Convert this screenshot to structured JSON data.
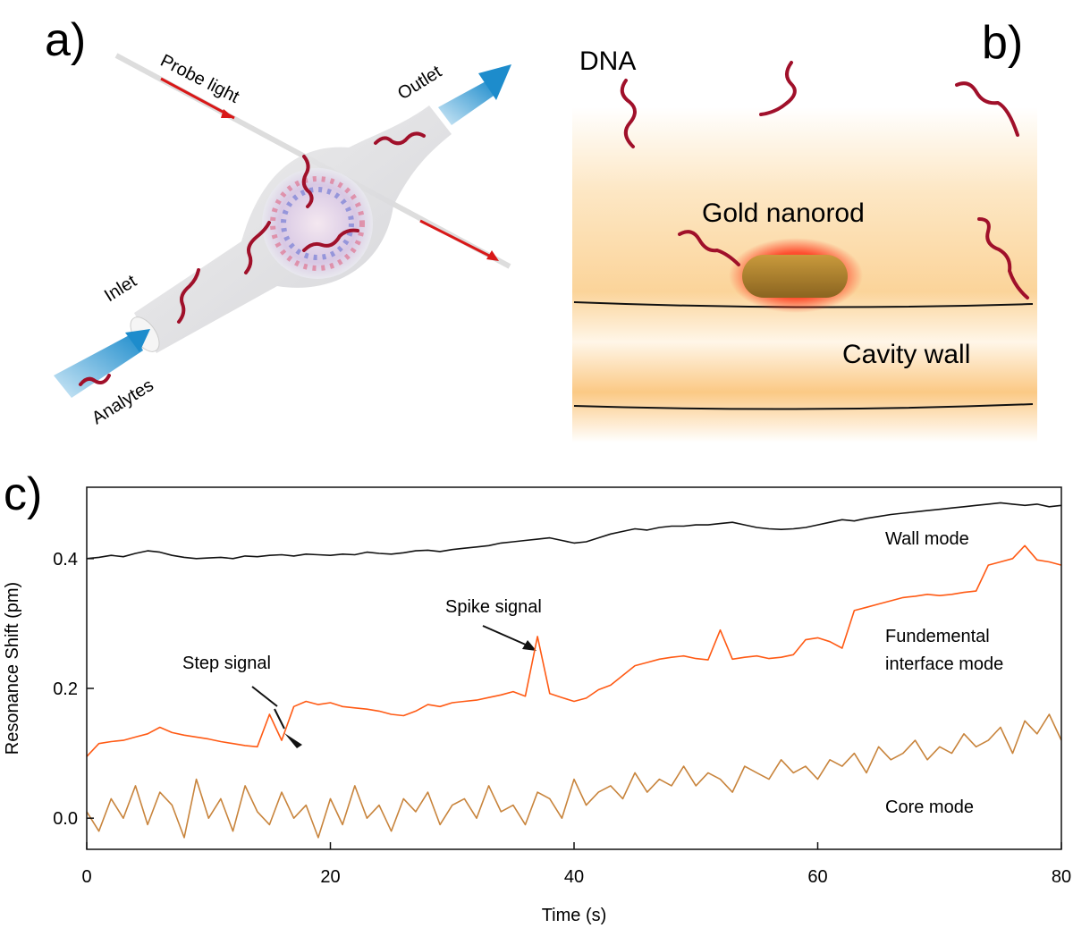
{
  "panel_a": {
    "label": "a)",
    "probe": "Probe light",
    "outlet": "Outlet",
    "inlet": "Inlet",
    "analytes": "Analytes"
  },
  "panel_b": {
    "label": "b)",
    "dna": "DNA",
    "nanorod": "Gold nanorod",
    "wall": "Cavity wall"
  },
  "panel_c": {
    "label": "c)"
  },
  "chart_data": {
    "type": "line",
    "xlabel": "Time (s)",
    "ylabel": "Resonance Shift (pm)",
    "x": [
      0,
      1,
      2,
      3,
      4,
      5,
      6,
      7,
      8,
      9,
      10,
      11,
      12,
      13,
      14,
      15,
      16,
      17,
      18,
      19,
      20,
      21,
      22,
      23,
      24,
      25,
      26,
      27,
      28,
      29,
      30,
      31,
      32,
      33,
      34,
      35,
      36,
      37,
      38,
      39,
      40,
      41,
      42,
      43,
      44,
      45,
      46,
      47,
      48,
      49,
      50,
      51,
      52,
      53,
      54,
      55,
      56,
      57,
      58,
      59,
      60,
      61,
      62,
      63,
      64,
      65,
      66,
      67,
      68,
      69,
      70,
      71,
      72,
      73,
      74,
      75,
      76,
      77,
      78,
      79,
      80
    ],
    "series": [
      {
        "name": "Wall mode",
        "color": "#111111",
        "values": [
          0.4,
          0.402,
          0.405,
          0.403,
          0.408,
          0.412,
          0.41,
          0.405,
          0.402,
          0.4,
          0.401,
          0.402,
          0.4,
          0.404,
          0.403,
          0.405,
          0.406,
          0.404,
          0.407,
          0.406,
          0.405,
          0.407,
          0.406,
          0.41,
          0.408,
          0.407,
          0.409,
          0.412,
          0.413,
          0.411,
          0.414,
          0.416,
          0.418,
          0.42,
          0.424,
          0.426,
          0.428,
          0.43,
          0.432,
          0.428,
          0.424,
          0.426,
          0.432,
          0.438,
          0.442,
          0.446,
          0.444,
          0.448,
          0.45,
          0.45,
          0.452,
          0.452,
          0.454,
          0.456,
          0.452,
          0.448,
          0.446,
          0.445,
          0.446,
          0.448,
          0.452,
          0.456,
          0.46,
          0.458,
          0.462,
          0.465,
          0.468,
          0.47,
          0.472,
          0.474,
          0.476,
          0.478,
          0.48,
          0.482,
          0.484,
          0.486,
          0.484,
          0.482,
          0.484,
          0.48,
          0.482
        ]
      },
      {
        "name": "Fundemental interface mode",
        "color": "#ff5a14",
        "values": [
          0.095,
          0.115,
          0.118,
          0.12,
          0.125,
          0.13,
          0.14,
          0.132,
          0.128,
          0.125,
          0.122,
          0.118,
          0.115,
          0.112,
          0.11,
          0.16,
          0.12,
          0.172,
          0.18,
          0.175,
          0.178,
          0.172,
          0.17,
          0.168,
          0.165,
          0.16,
          0.158,
          0.165,
          0.175,
          0.172,
          0.178,
          0.18,
          0.182,
          0.186,
          0.19,
          0.195,
          0.188,
          0.28,
          0.192,
          0.186,
          0.18,
          0.185,
          0.198,
          0.205,
          0.22,
          0.235,
          0.24,
          0.245,
          0.248,
          0.25,
          0.246,
          0.244,
          0.29,
          0.245,
          0.248,
          0.25,
          0.246,
          0.248,
          0.252,
          0.275,
          0.278,
          0.272,
          0.262,
          0.32,
          0.325,
          0.33,
          0.335,
          0.34,
          0.342,
          0.345,
          0.343,
          0.345,
          0.348,
          0.35,
          0.39,
          0.395,
          0.4,
          0.42,
          0.398,
          0.395,
          0.39
        ]
      },
      {
        "name": "Core mode",
        "color": "#c8843c",
        "values": [
          0.01,
          -0.02,
          0.03,
          0.0,
          0.05,
          -0.01,
          0.04,
          0.02,
          -0.03,
          0.06,
          0.0,
          0.03,
          -0.02,
          0.05,
          0.01,
          -0.01,
          0.04,
          0.0,
          0.02,
          -0.03,
          0.03,
          -0.01,
          0.05,
          0.0,
          0.02,
          -0.02,
          0.03,
          0.01,
          0.04,
          -0.01,
          0.02,
          0.03,
          0.0,
          0.05,
          0.01,
          0.02,
          -0.01,
          0.04,
          0.03,
          0.0,
          0.06,
          0.02,
          0.04,
          0.05,
          0.03,
          0.07,
          0.04,
          0.06,
          0.05,
          0.08,
          0.05,
          0.07,
          0.06,
          0.04,
          0.08,
          0.07,
          0.06,
          0.09,
          0.07,
          0.08,
          0.06,
          0.09,
          0.08,
          0.1,
          0.07,
          0.11,
          0.09,
          0.1,
          0.12,
          0.09,
          0.11,
          0.1,
          0.13,
          0.11,
          0.12,
          0.14,
          0.1,
          0.15,
          0.13,
          0.16,
          0.12
        ]
      }
    ],
    "annotations": [
      "Step signal",
      "Spike signal",
      "Wall mode",
      "Fundemental",
      "interface mode",
      "Core mode"
    ],
    "xlim": [
      0,
      80
    ],
    "ylim": [
      -0.048,
      0.51
    ],
    "xticks": [
      0,
      20,
      40,
      60,
      80
    ],
    "yticks": [
      {
        "value": 0,
        "label": "0.0"
      },
      0.2,
      0.4
    ]
  }
}
